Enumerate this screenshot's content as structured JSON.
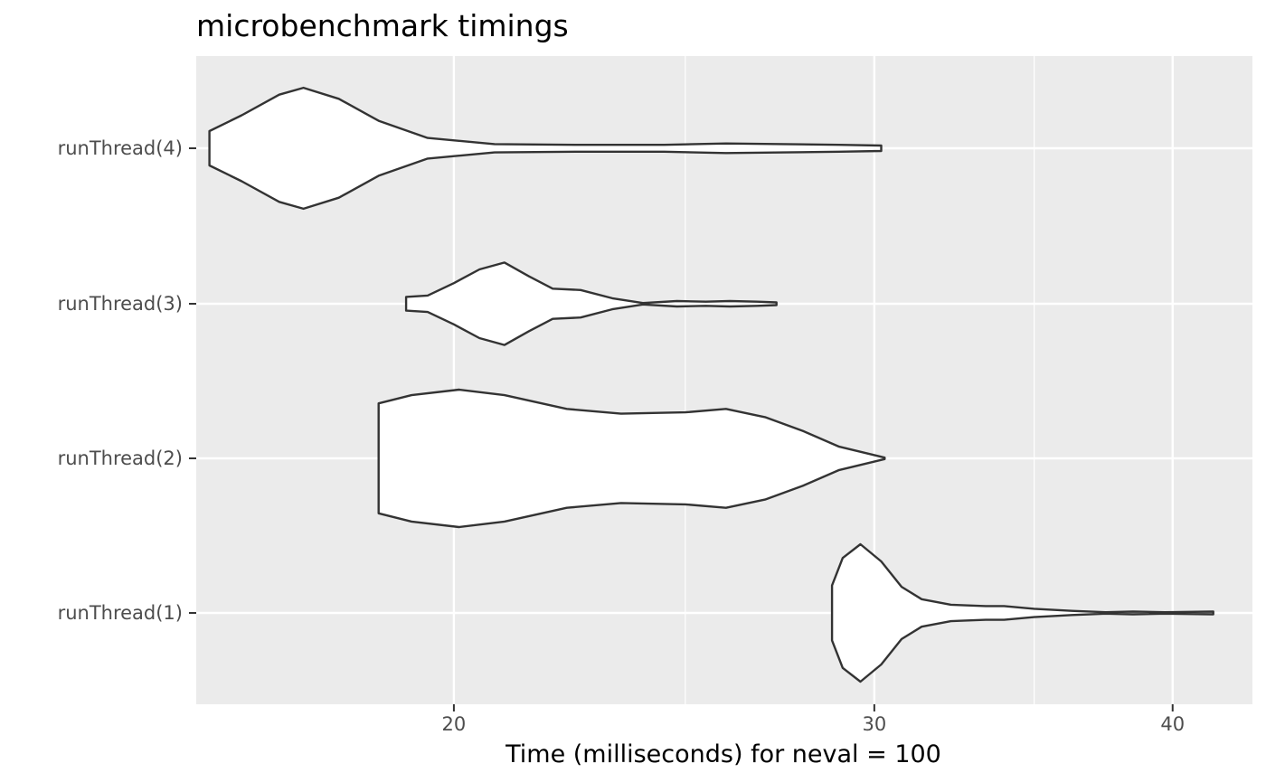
{
  "chart_data": {
    "type": "violin",
    "title": "microbenchmark timings",
    "xlabel": "Time (milliseconds) for neval = 100",
    "ylabel": "",
    "x_scale": "log",
    "x_range": [
      15.6,
      43.2
    ],
    "x_ticks": [
      20,
      30,
      40
    ],
    "x_tick_labels": [
      "20",
      "30",
      "40"
    ],
    "x_minor_gridlines": [
      25,
      35
    ],
    "grid": true,
    "categories": [
      "runThread(1)",
      "runThread(2)",
      "runThread(3)",
      "runThread(4)"
    ],
    "series": [
      {
        "category": "runThread(1)",
        "min": 28.8,
        "max": 41.6,
        "density": [
          [
            28.8,
            0.4
          ],
          [
            29.1,
            0.8
          ],
          [
            29.6,
            1.0
          ],
          [
            30.2,
            0.75
          ],
          [
            30.8,
            0.38
          ],
          [
            31.4,
            0.2
          ],
          [
            32.3,
            0.12
          ],
          [
            33.4,
            0.1
          ],
          [
            34.0,
            0.1
          ],
          [
            35.0,
            0.06
          ],
          [
            36.3,
            0.03
          ],
          [
            37.5,
            0.01
          ],
          [
            38.5,
            0.02
          ],
          [
            39.7,
            0.01
          ],
          [
            41.6,
            0.02
          ]
        ]
      },
      {
        "category": "runThread(2)",
        "min": 18.6,
        "max": 30.3,
        "density": [
          [
            18.6,
            0.8
          ],
          [
            19.2,
            0.92
          ],
          [
            20.1,
            1.0
          ],
          [
            21.0,
            0.92
          ],
          [
            22.3,
            0.72
          ],
          [
            23.5,
            0.65
          ],
          [
            25.0,
            0.67
          ],
          [
            26.0,
            0.72
          ],
          [
            27.0,
            0.6
          ],
          [
            28.0,
            0.4
          ],
          [
            29.0,
            0.17
          ],
          [
            30.3,
            0.01
          ]
        ]
      },
      {
        "category": "runThread(3)",
        "min": 19.1,
        "max": 27.3,
        "density": [
          [
            19.1,
            0.1
          ],
          [
            19.5,
            0.12
          ],
          [
            20.0,
            0.3
          ],
          [
            20.5,
            0.5
          ],
          [
            21.0,
            0.6
          ],
          [
            21.5,
            0.4
          ],
          [
            22.0,
            0.22
          ],
          [
            22.6,
            0.2
          ],
          [
            23.3,
            0.08
          ],
          [
            24.0,
            0.01
          ],
          [
            24.8,
            0.04
          ],
          [
            25.5,
            0.03
          ],
          [
            26.1,
            0.04
          ],
          [
            26.8,
            0.03
          ],
          [
            27.3,
            0.02
          ]
        ]
      },
      {
        "category": "runThread(4)",
        "min": 15.8,
        "max": 30.2,
        "density": [
          [
            15.8,
            0.25
          ],
          [
            16.3,
            0.48
          ],
          [
            16.9,
            0.78
          ],
          [
            17.3,
            0.88
          ],
          [
            17.9,
            0.72
          ],
          [
            18.6,
            0.4
          ],
          [
            19.5,
            0.15
          ],
          [
            20.8,
            0.06
          ],
          [
            22.5,
            0.05
          ],
          [
            24.5,
            0.05
          ],
          [
            26.0,
            0.07
          ],
          [
            27.5,
            0.06
          ],
          [
            29.0,
            0.05
          ],
          [
            30.2,
            0.04
          ]
        ]
      }
    ]
  }
}
